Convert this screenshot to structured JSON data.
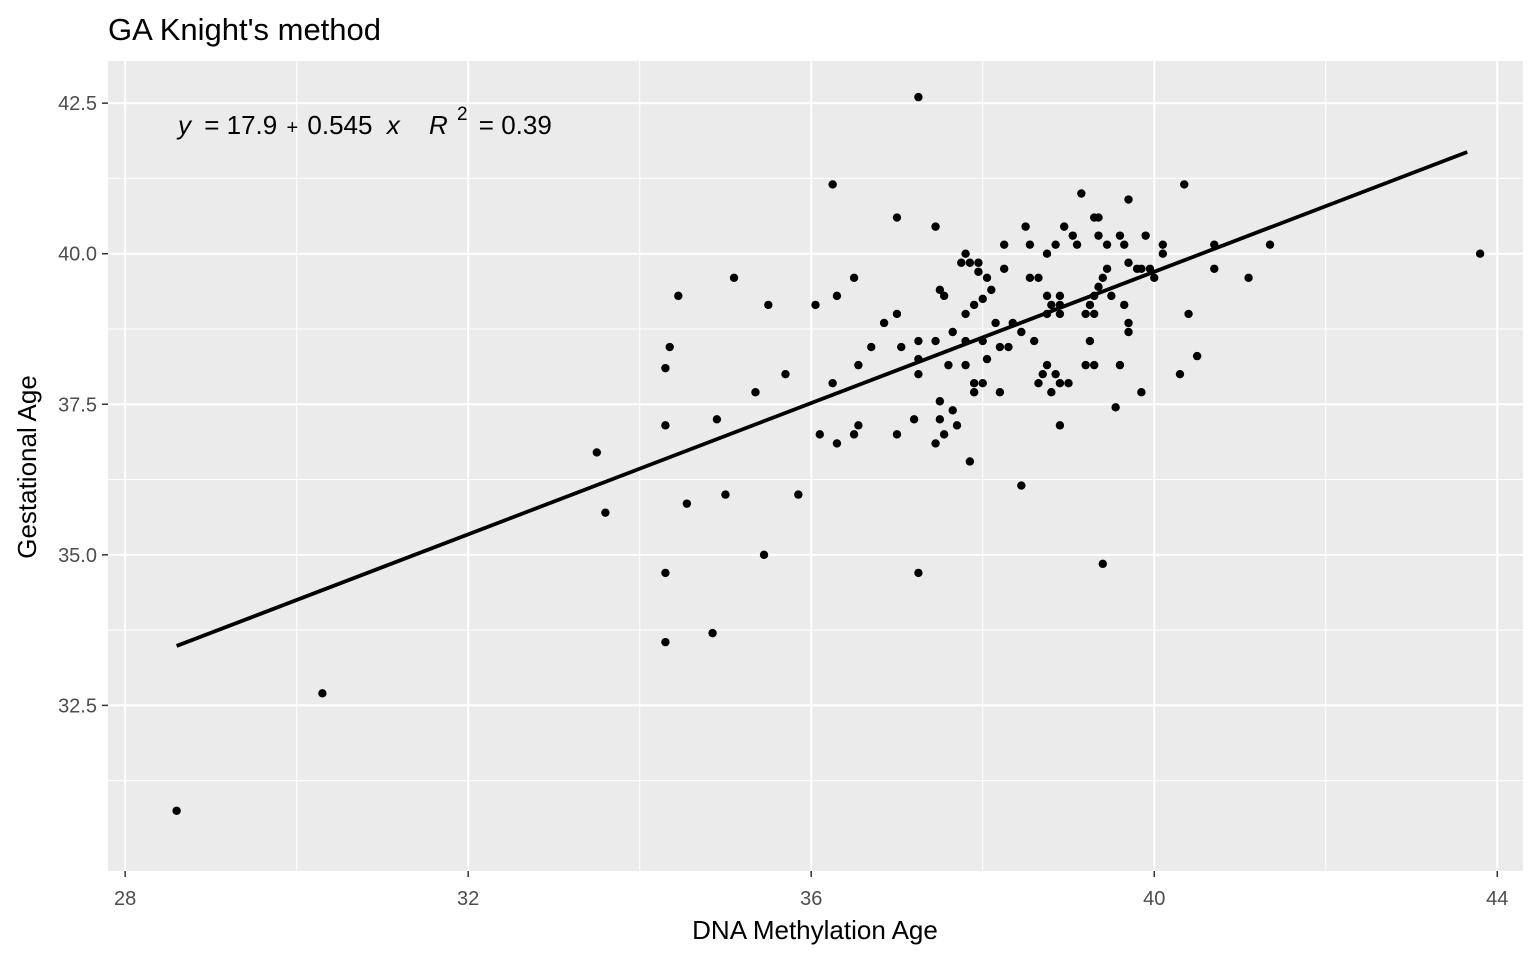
{
  "chart_data": {
    "type": "scatter",
    "title": "GA Knight's method",
    "xlabel": "DNA Methylation Age",
    "ylabel": "Gestational Age",
    "xlim": [
      27.8,
      44.3
    ],
    "ylim": [
      29.75,
      43.2
    ],
    "xticks": [
      28,
      32,
      36,
      40,
      44
    ],
    "xtick_labels": [
      "28",
      "32",
      "36",
      "40",
      "44"
    ],
    "yticks": [
      32.5,
      35.0,
      37.5,
      40.0,
      42.5
    ],
    "ytick_labels": [
      "32.5",
      "35.0",
      "37.5",
      "40.0",
      "42.5"
    ],
    "grid": true,
    "background": "#ebebeb",
    "grid_color": "#ffffff",
    "point_color": "#000000",
    "annotation": {
      "y_var": "y",
      "equation": "= 17.9",
      "plus": "+",
      "slope": "0.545",
      "x_var": "x",
      "r_var": "R",
      "r_sup": "2",
      "r2_value": "= 0.39"
    },
    "fit_line": {
      "intercept": 17.9,
      "slope": 0.545,
      "x_range": [
        28.6,
        43.65
      ]
    },
    "points": [
      [
        28.6,
        30.75
      ],
      [
        30.3,
        32.7
      ],
      [
        33.5,
        36.7
      ],
      [
        33.6,
        35.7
      ],
      [
        34.3,
        33.55
      ],
      [
        34.3,
        34.7
      ],
      [
        34.3,
        37.15
      ],
      [
        34.3,
        38.1
      ],
      [
        34.35,
        38.45
      ],
      [
        34.45,
        39.3
      ],
      [
        34.55,
        35.85
      ],
      [
        34.85,
        33.7
      ],
      [
        34.9,
        37.25
      ],
      [
        35.0,
        36.0
      ],
      [
        35.1,
        39.6
      ],
      [
        35.35,
        37.7
      ],
      [
        35.45,
        35.0
      ],
      [
        35.5,
        39.15
      ],
      [
        35.7,
        38.0
      ],
      [
        35.85,
        36.0
      ],
      [
        36.05,
        39.15
      ],
      [
        36.1,
        37.0
      ],
      [
        36.25,
        37.85
      ],
      [
        36.25,
        41.15
      ],
      [
        36.3,
        36.85
      ],
      [
        36.3,
        39.3
      ],
      [
        36.5,
        37.0
      ],
      [
        36.5,
        39.6
      ],
      [
        36.55,
        37.15
      ],
      [
        36.55,
        38.15
      ],
      [
        36.7,
        38.45
      ],
      [
        36.85,
        38.85
      ],
      [
        37.0,
        37.0
      ],
      [
        37.0,
        39.0
      ],
      [
        37.0,
        40.6
      ],
      [
        37.05,
        38.45
      ],
      [
        37.2,
        37.25
      ],
      [
        37.25,
        42.6
      ],
      [
        37.25,
        34.7
      ],
      [
        37.25,
        38.0
      ],
      [
        37.25,
        38.25
      ],
      [
        37.25,
        38.55
      ],
      [
        37.45,
        36.85
      ],
      [
        37.45,
        40.45
      ],
      [
        37.45,
        38.55
      ],
      [
        37.5,
        39.4
      ],
      [
        37.5,
        37.55
      ],
      [
        37.5,
        37.25
      ],
      [
        37.55,
        37.0
      ],
      [
        37.55,
        39.3
      ],
      [
        37.6,
        38.15
      ],
      [
        37.65,
        38.7
      ],
      [
        37.65,
        37.4
      ],
      [
        37.7,
        37.15
      ],
      [
        37.75,
        39.85
      ],
      [
        37.8,
        40.0
      ],
      [
        37.8,
        39.0
      ],
      [
        37.8,
        38.55
      ],
      [
        37.8,
        38.15
      ],
      [
        37.85,
        36.55
      ],
      [
        37.85,
        39.85
      ],
      [
        37.9,
        39.15
      ],
      [
        37.9,
        37.85
      ],
      [
        37.9,
        37.7
      ],
      [
        37.95,
        39.85
      ],
      [
        37.95,
        39.7
      ],
      [
        38.0,
        39.25
      ],
      [
        38.0,
        38.55
      ],
      [
        38.0,
        37.85
      ],
      [
        38.05,
        39.6
      ],
      [
        38.05,
        38.25
      ],
      [
        38.1,
        39.4
      ],
      [
        38.15,
        38.85
      ],
      [
        38.2,
        38.45
      ],
      [
        38.2,
        37.7
      ],
      [
        38.25,
        40.15
      ],
      [
        38.25,
        39.75
      ],
      [
        38.3,
        38.45
      ],
      [
        38.35,
        38.85
      ],
      [
        38.45,
        38.7
      ],
      [
        38.45,
        36.15
      ],
      [
        38.5,
        40.45
      ],
      [
        38.55,
        40.15
      ],
      [
        38.55,
        39.6
      ],
      [
        38.6,
        38.55
      ],
      [
        38.65,
        39.6
      ],
      [
        38.65,
        37.85
      ],
      [
        38.7,
        38.0
      ],
      [
        38.75,
        40.0
      ],
      [
        38.75,
        39.3
      ],
      [
        38.75,
        39.0
      ],
      [
        38.75,
        38.15
      ],
      [
        38.8,
        39.15
      ],
      [
        38.8,
        37.7
      ],
      [
        38.85,
        40.15
      ],
      [
        38.85,
        38.0
      ],
      [
        38.9,
        39.3
      ],
      [
        38.9,
        39.15
      ],
      [
        38.9,
        39.0
      ],
      [
        38.9,
        37.85
      ],
      [
        38.9,
        37.15
      ],
      [
        38.95,
        40.45
      ],
      [
        39.0,
        37.85
      ],
      [
        39.05,
        40.3
      ],
      [
        39.1,
        40.15
      ],
      [
        39.15,
        41.0
      ],
      [
        39.2,
        39.0
      ],
      [
        39.2,
        38.15
      ],
      [
        39.25,
        39.15
      ],
      [
        39.25,
        38.55
      ],
      [
        39.3,
        40.6
      ],
      [
        39.3,
        39.3
      ],
      [
        39.3,
        39.0
      ],
      [
        39.3,
        38.15
      ],
      [
        39.35,
        40.6
      ],
      [
        39.35,
        40.3
      ],
      [
        39.35,
        39.45
      ],
      [
        39.4,
        39.6
      ],
      [
        39.4,
        34.85
      ],
      [
        39.45,
        40.15
      ],
      [
        39.45,
        39.75
      ],
      [
        39.5,
        39.3
      ],
      [
        39.55,
        37.45
      ],
      [
        39.6,
        40.3
      ],
      [
        39.6,
        38.15
      ],
      [
        39.65,
        40.15
      ],
      [
        39.65,
        39.15
      ],
      [
        39.7,
        40.9
      ],
      [
        39.7,
        39.85
      ],
      [
        39.7,
        38.85
      ],
      [
        39.7,
        38.7
      ],
      [
        39.8,
        39.75
      ],
      [
        39.85,
        37.7
      ],
      [
        39.85,
        39.75
      ],
      [
        39.9,
        40.3
      ],
      [
        39.95,
        39.75
      ],
      [
        40.0,
        39.6
      ],
      [
        40.1,
        40.15
      ],
      [
        40.1,
        40.0
      ],
      [
        40.3,
        38.0
      ],
      [
        40.35,
        41.15
      ],
      [
        40.4,
        39.0
      ],
      [
        40.5,
        38.3
      ],
      [
        40.7,
        40.15
      ],
      [
        40.7,
        39.75
      ],
      [
        41.1,
        39.6
      ],
      [
        41.35,
        40.15
      ],
      [
        43.8,
        40.0
      ]
    ]
  }
}
